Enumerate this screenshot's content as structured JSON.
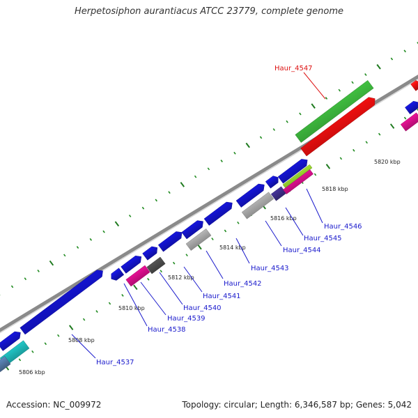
{
  "title": "Herpetosiphon aurantiacus ATCC 23779, complete genome",
  "accession": "Accession: NC_009972",
  "summary": "Topology: circular; Length: 6,346,587 bp; Genes: 5,042",
  "colors": {
    "backbone": "#8a8a8a",
    "tick_major": "#1f7a1f",
    "tick_minor": "#1f8a1f",
    "blue": "#1515e0",
    "red": "#ff1010",
    "green": "#44cc44",
    "magenta": "#ee1199",
    "cyan": "#22cccc",
    "steel": "#5b86b8",
    "lightgray": "#bbbbbb",
    "darkgray": "#555555",
    "purple": "#443399",
    "lime": "#aaee33",
    "label_blue": "#1a1acc",
    "label_red": "#dd1111"
  },
  "scale_labels": [
    "5806 kbp",
    "5808 kbp",
    "5810 kbp",
    "5812 kbp",
    "5814 kbp",
    "5816 kbp",
    "5818 kbp",
    "5820 kbp"
  ],
  "gene_labels": [
    {
      "name": "Haur_4537",
      "color": "label_blue"
    },
    {
      "name": "Haur_4538",
      "color": "label_blue"
    },
    {
      "name": "Haur_4539",
      "color": "label_blue"
    },
    {
      "name": "Haur_4540",
      "color": "label_blue"
    },
    {
      "name": "Haur_4541",
      "color": "label_blue"
    },
    {
      "name": "Haur_4542",
      "color": "label_blue"
    },
    {
      "name": "Haur_4543",
      "color": "label_blue"
    },
    {
      "name": "Haur_4544",
      "color": "label_blue"
    },
    {
      "name": "Haur_4545",
      "color": "label_blue"
    },
    {
      "name": "Haur_4546",
      "color": "label_blue"
    },
    {
      "name": "Haur_4547",
      "color": "label_red"
    }
  ]
}
